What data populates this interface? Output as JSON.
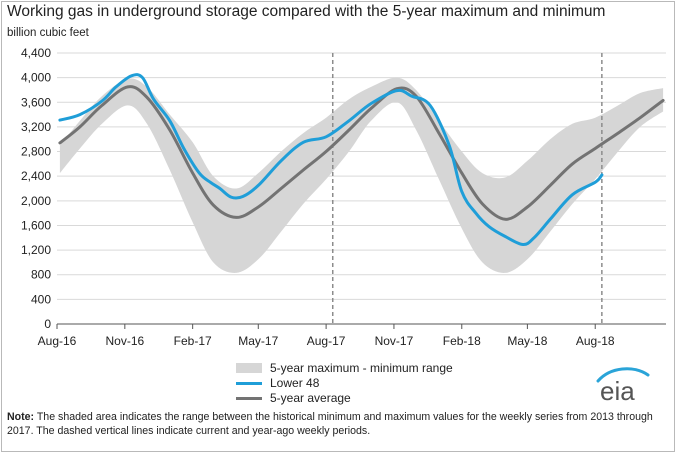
{
  "chart_data": {
    "type": "line",
    "title": "Working gas in underground  storage compared with the 5-year maximum and minimum",
    "ylabel": "billion cubic feet",
    "ylim": [
      0,
      4400
    ],
    "yticks": [
      0,
      400,
      800,
      1200,
      1600,
      2000,
      2400,
      2800,
      3200,
      3600,
      4000,
      4400
    ],
    "ytick_labels": [
      "0",
      "400",
      "800",
      "1,200",
      "1,600",
      "2,000",
      "2,400",
      "2,800",
      "3,200",
      "3,600",
      "4,000",
      "4,400"
    ],
    "xlim": [
      "2016-08-01",
      "2018-11-05"
    ],
    "xticks": [
      "2016-08-01",
      "2016-11-01",
      "2017-02-01",
      "2017-05-01",
      "2017-08-01",
      "2017-11-01",
      "2018-02-01",
      "2018-05-01",
      "2018-08-01"
    ],
    "xtick_labels": [
      "Aug-16",
      "Nov-16",
      "Feb-17",
      "May-17",
      "Aug-17",
      "Nov-17",
      "Feb-18",
      "May-18",
      "Aug-18"
    ],
    "grid": true,
    "legend_position": "bottom-center",
    "range": {
      "name": "5-year maximum - minimum range",
      "x": [
        "2016-08-05",
        "2016-09-01",
        "2016-10-01",
        "2016-11-05",
        "2016-12-01",
        "2017-01-01",
        "2017-02-01",
        "2017-03-01",
        "2017-04-01",
        "2017-05-01",
        "2017-06-01",
        "2017-07-01",
        "2017-08-01",
        "2017-09-01",
        "2017-10-01",
        "2017-11-05",
        "2017-12-01",
        "2018-01-01",
        "2018-02-01",
        "2018-03-01",
        "2018-04-01",
        "2018-05-01",
        "2018-06-01",
        "2018-07-01",
        "2018-08-01",
        "2018-09-01",
        "2018-10-01",
        "2018-11-01"
      ],
      "max": [
        2900,
        3300,
        3700,
        3980,
        3850,
        3400,
        2950,
        2400,
        2200,
        2450,
        2800,
        3100,
        3350,
        3650,
        3850,
        4000,
        3800,
        3300,
        2800,
        2450,
        2380,
        2650,
        3000,
        3250,
        3350,
        3550,
        3750,
        3830
      ],
      "min": [
        2450,
        2850,
        3250,
        3550,
        3250,
        2500,
        1650,
        1000,
        830,
        1050,
        1500,
        1950,
        2350,
        2800,
        3300,
        3600,
        3150,
        2350,
        1550,
        1000,
        830,
        1050,
        1500,
        1950,
        2350,
        2800,
        3200,
        3450
      ]
    },
    "series": [
      {
        "name": "Lower 48",
        "color": "#1f9ed8",
        "x": [
          "2016-08-05",
          "2016-09-01",
          "2016-10-01",
          "2016-10-20",
          "2016-11-10",
          "2016-11-25",
          "2016-12-10",
          "2017-01-01",
          "2017-01-20",
          "2017-02-10",
          "2017-02-25",
          "2017-03-10",
          "2017-03-25",
          "2017-04-10",
          "2017-05-01",
          "2017-06-01",
          "2017-07-01",
          "2017-08-01",
          "2017-09-01",
          "2017-10-01",
          "2017-11-05",
          "2017-11-25",
          "2017-12-20",
          "2018-01-15",
          "2018-02-01",
          "2018-02-20",
          "2018-03-10",
          "2018-04-01",
          "2018-04-25",
          "2018-05-10",
          "2018-06-01",
          "2018-07-01",
          "2018-08-01",
          "2018-08-10"
        ],
        "values": [
          3310,
          3400,
          3620,
          3850,
          4030,
          4000,
          3650,
          3300,
          2850,
          2450,
          2300,
          2200,
          2060,
          2070,
          2250,
          2650,
          2950,
          3040,
          3300,
          3580,
          3790,
          3700,
          3550,
          2900,
          2150,
          1800,
          1580,
          1420,
          1290,
          1400,
          1700,
          2100,
          2300,
          2420
        ]
      },
      {
        "name": "5-year average",
        "color": "#737373",
        "x": [
          "2016-08-05",
          "2016-09-01",
          "2016-10-01",
          "2016-11-05",
          "2016-12-01",
          "2017-01-01",
          "2017-02-01",
          "2017-03-01",
          "2017-04-01",
          "2017-05-01",
          "2017-06-01",
          "2017-07-01",
          "2017-08-01",
          "2017-09-01",
          "2017-10-01",
          "2017-11-05",
          "2017-12-01",
          "2018-01-01",
          "2018-02-01",
          "2018-03-01",
          "2018-04-01",
          "2018-05-01",
          "2018-06-01",
          "2018-07-01",
          "2018-08-01",
          "2018-09-01",
          "2018-10-01",
          "2018-11-01"
        ],
        "values": [
          2940,
          3200,
          3550,
          3850,
          3680,
          3150,
          2450,
          1930,
          1730,
          1900,
          2200,
          2500,
          2800,
          3150,
          3500,
          3820,
          3700,
          3100,
          2450,
          1950,
          1700,
          1900,
          2250,
          2600,
          2850,
          3100,
          3350,
          3630
        ]
      }
    ],
    "vertical_lines": [
      "2017-08-10",
      "2018-08-10"
    ]
  },
  "legend": {
    "range_label": "5-year maximum - minimum range",
    "l48_label": "Lower 48",
    "avg_label": "5-year average"
  },
  "note": {
    "label": "Note:",
    "text": " The shaded area indicates the range between the historical minimum and maximum values for the weekly series from 2013 through 2017. The dashed vertical lines indicate current and year-ago weekly periods."
  },
  "logo": {
    "text": "eia"
  }
}
